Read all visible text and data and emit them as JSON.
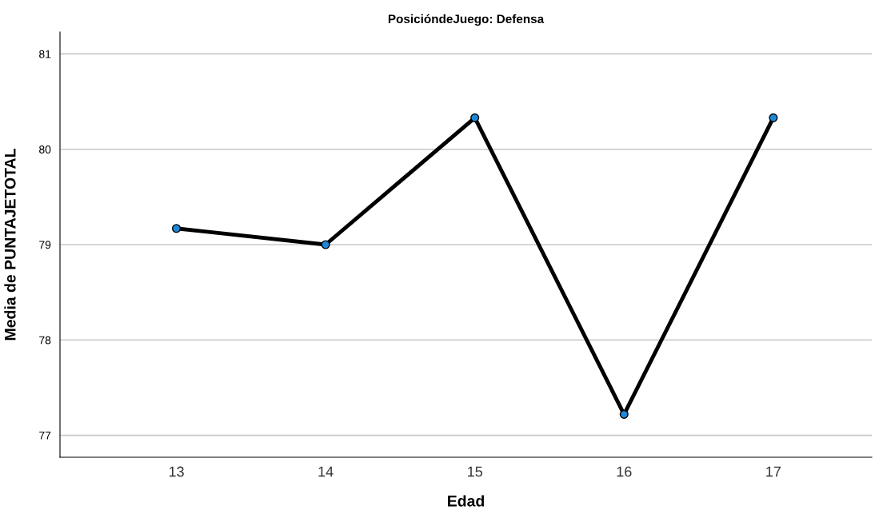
{
  "chart_data": {
    "type": "line",
    "title": "PosicióndeJuego: Defensa",
    "xlabel": "Edad",
    "ylabel": "Media de PUNTAJETOTAL",
    "categories": [
      "13",
      "14",
      "15",
      "16",
      "17"
    ],
    "series": [
      {
        "color": "#000000",
        "values": [
          79.17,
          79.0,
          80.33,
          77.22,
          80.33
        ]
      }
    ],
    "marker": "circle",
    "line_style": "solid",
    "ylim": [
      76.77,
      81.23
    ],
    "yticks": [
      77,
      78,
      79,
      80,
      81
    ],
    "grid": "y",
    "legend": false
  }
}
